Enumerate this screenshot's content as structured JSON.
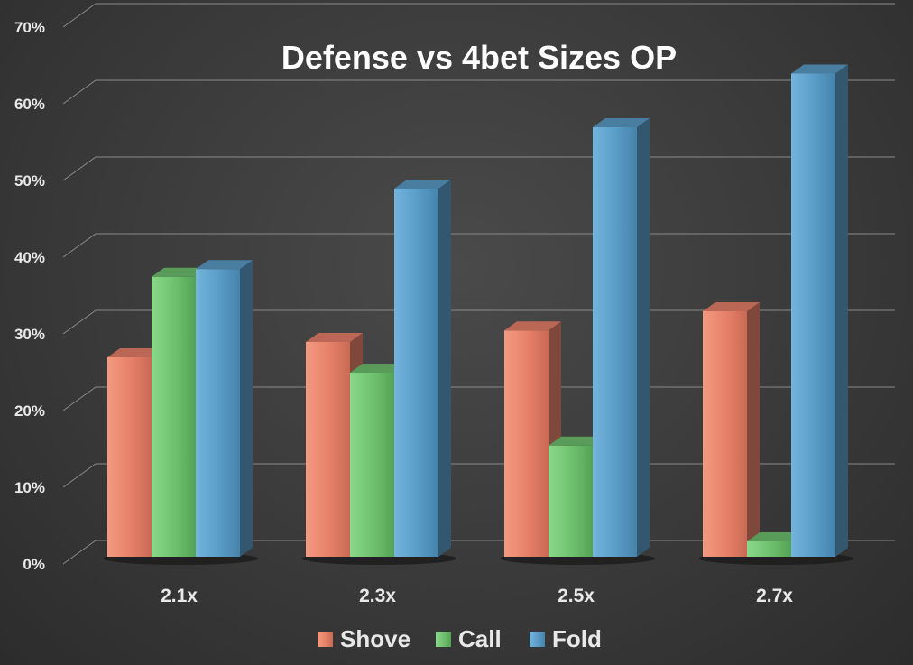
{
  "chart_data": {
    "type": "bar",
    "style": "3d-clustered-column",
    "title": "Defense vs 4bet Sizes OP",
    "xlabel": "",
    "ylabel": "",
    "categories": [
      "2.1x",
      "2.3x",
      "2.5x",
      "2.7x"
    ],
    "series": [
      {
        "name": "Shove",
        "color": "#e8826a",
        "values": [
          26,
          28,
          29.5,
          32
        ]
      },
      {
        "name": "Call",
        "color": "#6fc26f",
        "values": [
          36.5,
          24,
          14.5,
          2
        ]
      },
      {
        "name": "Fold",
        "color": "#5b9ec9",
        "values": [
          37.5,
          48,
          56,
          63
        ]
      }
    ],
    "ylim": [
      0,
      70
    ],
    "yticks": [
      "0%",
      "10%",
      "20%",
      "30%",
      "40%",
      "50%",
      "60%",
      "70%"
    ],
    "grid": true,
    "legend_position": "bottom"
  }
}
